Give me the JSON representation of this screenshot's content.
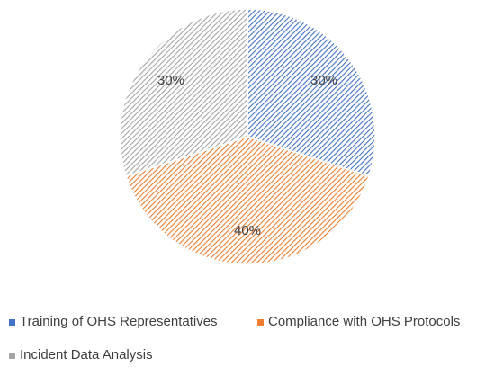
{
  "chart_data": {
    "type": "pie",
    "categories": [
      "Training of OHS Representatives",
      "Compliance with OHS Protocols",
      "Incident Data Analysis"
    ],
    "values": [
      30,
      40,
      30
    ],
    "value_labels": [
      "30%",
      "40%",
      "30%"
    ],
    "colors": [
      "#4472c4",
      "#ed7d31",
      "#a5a5a5"
    ],
    "hatch": true,
    "legend": "bottom"
  }
}
